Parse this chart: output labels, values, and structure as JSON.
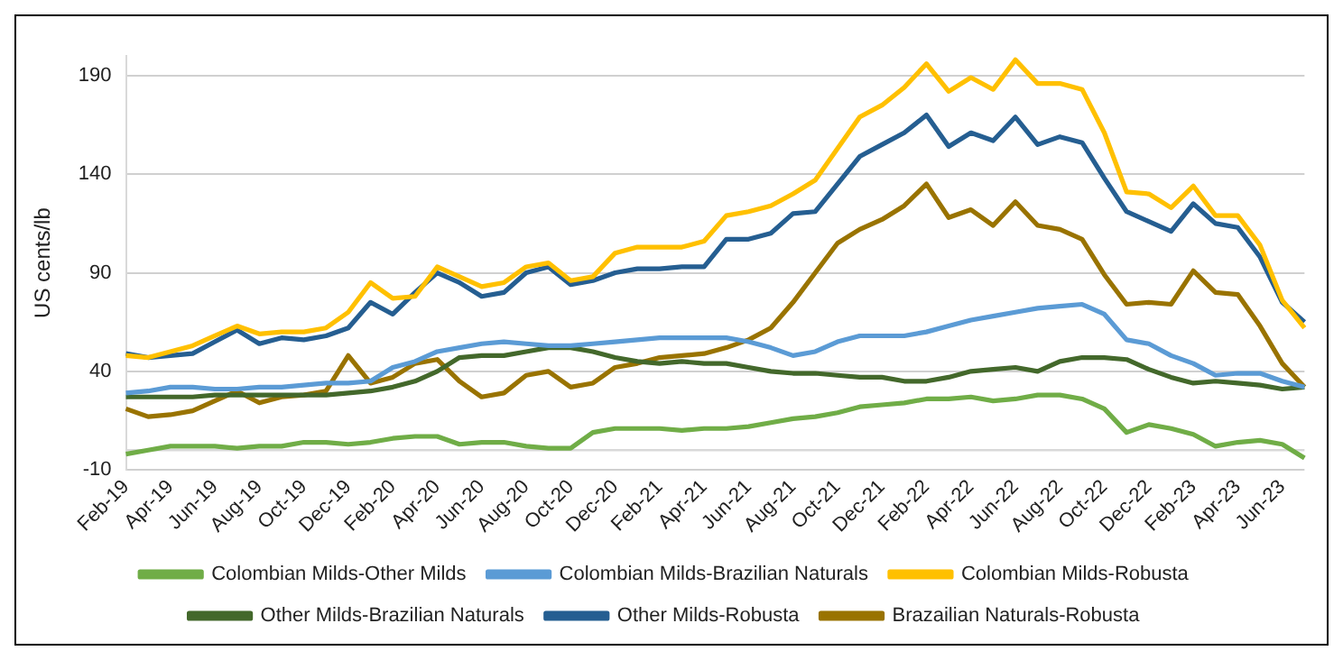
{
  "chart_data": {
    "type": "line",
    "ylabel": "US cents/lb",
    "categories": [
      "Feb-19",
      null,
      "Apr-19",
      null,
      "Jun-19",
      null,
      "Aug-19",
      null,
      "Oct-19",
      null,
      "Dec-19",
      null,
      "Feb-20",
      null,
      "Apr-20",
      null,
      "Jun-20",
      null,
      "Aug-20",
      null,
      "Oct-20",
      null,
      "Dec-20",
      null,
      "Feb-21",
      null,
      "Apr-21",
      null,
      "Jun-21",
      null,
      "Aug-21",
      null,
      "Oct-21",
      null,
      "Dec-21",
      null,
      "Feb-22",
      null,
      "Apr-22",
      null,
      "Jun-22",
      null,
      "Aug-22",
      null,
      "Oct-22",
      null,
      "Dec-22",
      null,
      "Feb-23",
      null,
      "Apr-23",
      null,
      "Jun-23",
      null
    ],
    "series": [
      {
        "name": "Colombian Milds-Other Milds",
        "color": "#70ad47",
        "values": [
          -2,
          0,
          2,
          2,
          2,
          1,
          2,
          2,
          4,
          4,
          3,
          4,
          6,
          7,
          7,
          3,
          4,
          4,
          2,
          1,
          1,
          9,
          11,
          11,
          11,
          10,
          11,
          11,
          12,
          14,
          16,
          17,
          19,
          22,
          23,
          24,
          26,
          26,
          27,
          25,
          26,
          28,
          28,
          26,
          21,
          9,
          13,
          11,
          8,
          2,
          4,
          5,
          3,
          -4
        ]
      },
      {
        "name": "Colombian Milds-Brazilian Naturals",
        "color": "#5b9bd5",
        "values": [
          29,
          30,
          32,
          32,
          31,
          31,
          32,
          32,
          33,
          34,
          34,
          35,
          42,
          45,
          50,
          52,
          54,
          55,
          54,
          53,
          53,
          54,
          55,
          56,
          57,
          57,
          57,
          57,
          55,
          52,
          48,
          50,
          55,
          58,
          58,
          58,
          60,
          63,
          66,
          68,
          70,
          72,
          73,
          74,
          69,
          56,
          54,
          48,
          44,
          38,
          39,
          39,
          35,
          32
        ]
      },
      {
        "name": "Colombian Milds-Robusta",
        "color": "#ffc000",
        "values": [
          48,
          47,
          50,
          53,
          58,
          63,
          59,
          60,
          60,
          62,
          70,
          85,
          77,
          78,
          93,
          88,
          83,
          85,
          93,
          95,
          86,
          88,
          100,
          103,
          103,
          103,
          106,
          119,
          121,
          124,
          130,
          137,
          153,
          169,
          175,
          184,
          196,
          182,
          189,
          183,
          198,
          186,
          186,
          183,
          161,
          131,
          130,
          123,
          134,
          119,
          119,
          104,
          76,
          62
        ]
      },
      {
        "name": "Other Milds-Brazilian Naturals",
        "color": "#43682b",
        "values": [
          27,
          27,
          27,
          27,
          28,
          28,
          28,
          28,
          28,
          28,
          29,
          30,
          32,
          35,
          40,
          47,
          48,
          48,
          50,
          52,
          52,
          50,
          47,
          45,
          44,
          45,
          44,
          44,
          42,
          40,
          39,
          39,
          38,
          37,
          37,
          35,
          35,
          37,
          40,
          41,
          42,
          40,
          45,
          47,
          47,
          46,
          41,
          37,
          34,
          35,
          34,
          33,
          31,
          32
        ]
      },
      {
        "name": "Other Milds-Robusta",
        "color": "#255e91",
        "values": [
          49,
          47,
          48,
          49,
          55,
          61,
          54,
          57,
          56,
          58,
          62,
          75,
          69,
          80,
          90,
          85,
          78,
          80,
          90,
          93,
          84,
          86,
          90,
          92,
          92,
          93,
          93,
          107,
          107,
          110,
          120,
          121,
          135,
          149,
          155,
          161,
          170,
          154,
          161,
          157,
          169,
          155,
          159,
          156,
          138,
          121,
          116,
          111,
          125,
          115,
          113,
          98,
          75,
          65
        ]
      },
      {
        "name": "Brazailian Naturals-Robusta",
        "color": "#997300",
        "values": [
          21,
          17,
          18,
          20,
          25,
          30,
          24,
          27,
          28,
          30,
          48,
          34,
          37,
          44,
          46,
          35,
          27,
          29,
          38,
          40,
          32,
          34,
          42,
          44,
          47,
          48,
          49,
          52,
          56,
          62,
          75,
          90,
          105,
          112,
          117,
          124,
          135,
          118,
          122,
          114,
          126,
          114,
          112,
          107,
          89,
          74,
          75,
          74,
          91,
          80,
          79,
          63,
          44,
          32
        ]
      }
    ],
    "ylim": [
      -10,
      200
    ],
    "yticks": [
      -10,
      40,
      90,
      140,
      190
    ],
    "ref_lines": [
      {
        "axis": "y",
        "value": 0,
        "color": "#d9d9d9"
      }
    ],
    "grid": "y",
    "legend": "bottom",
    "marker": "none",
    "line_style": "solid"
  }
}
